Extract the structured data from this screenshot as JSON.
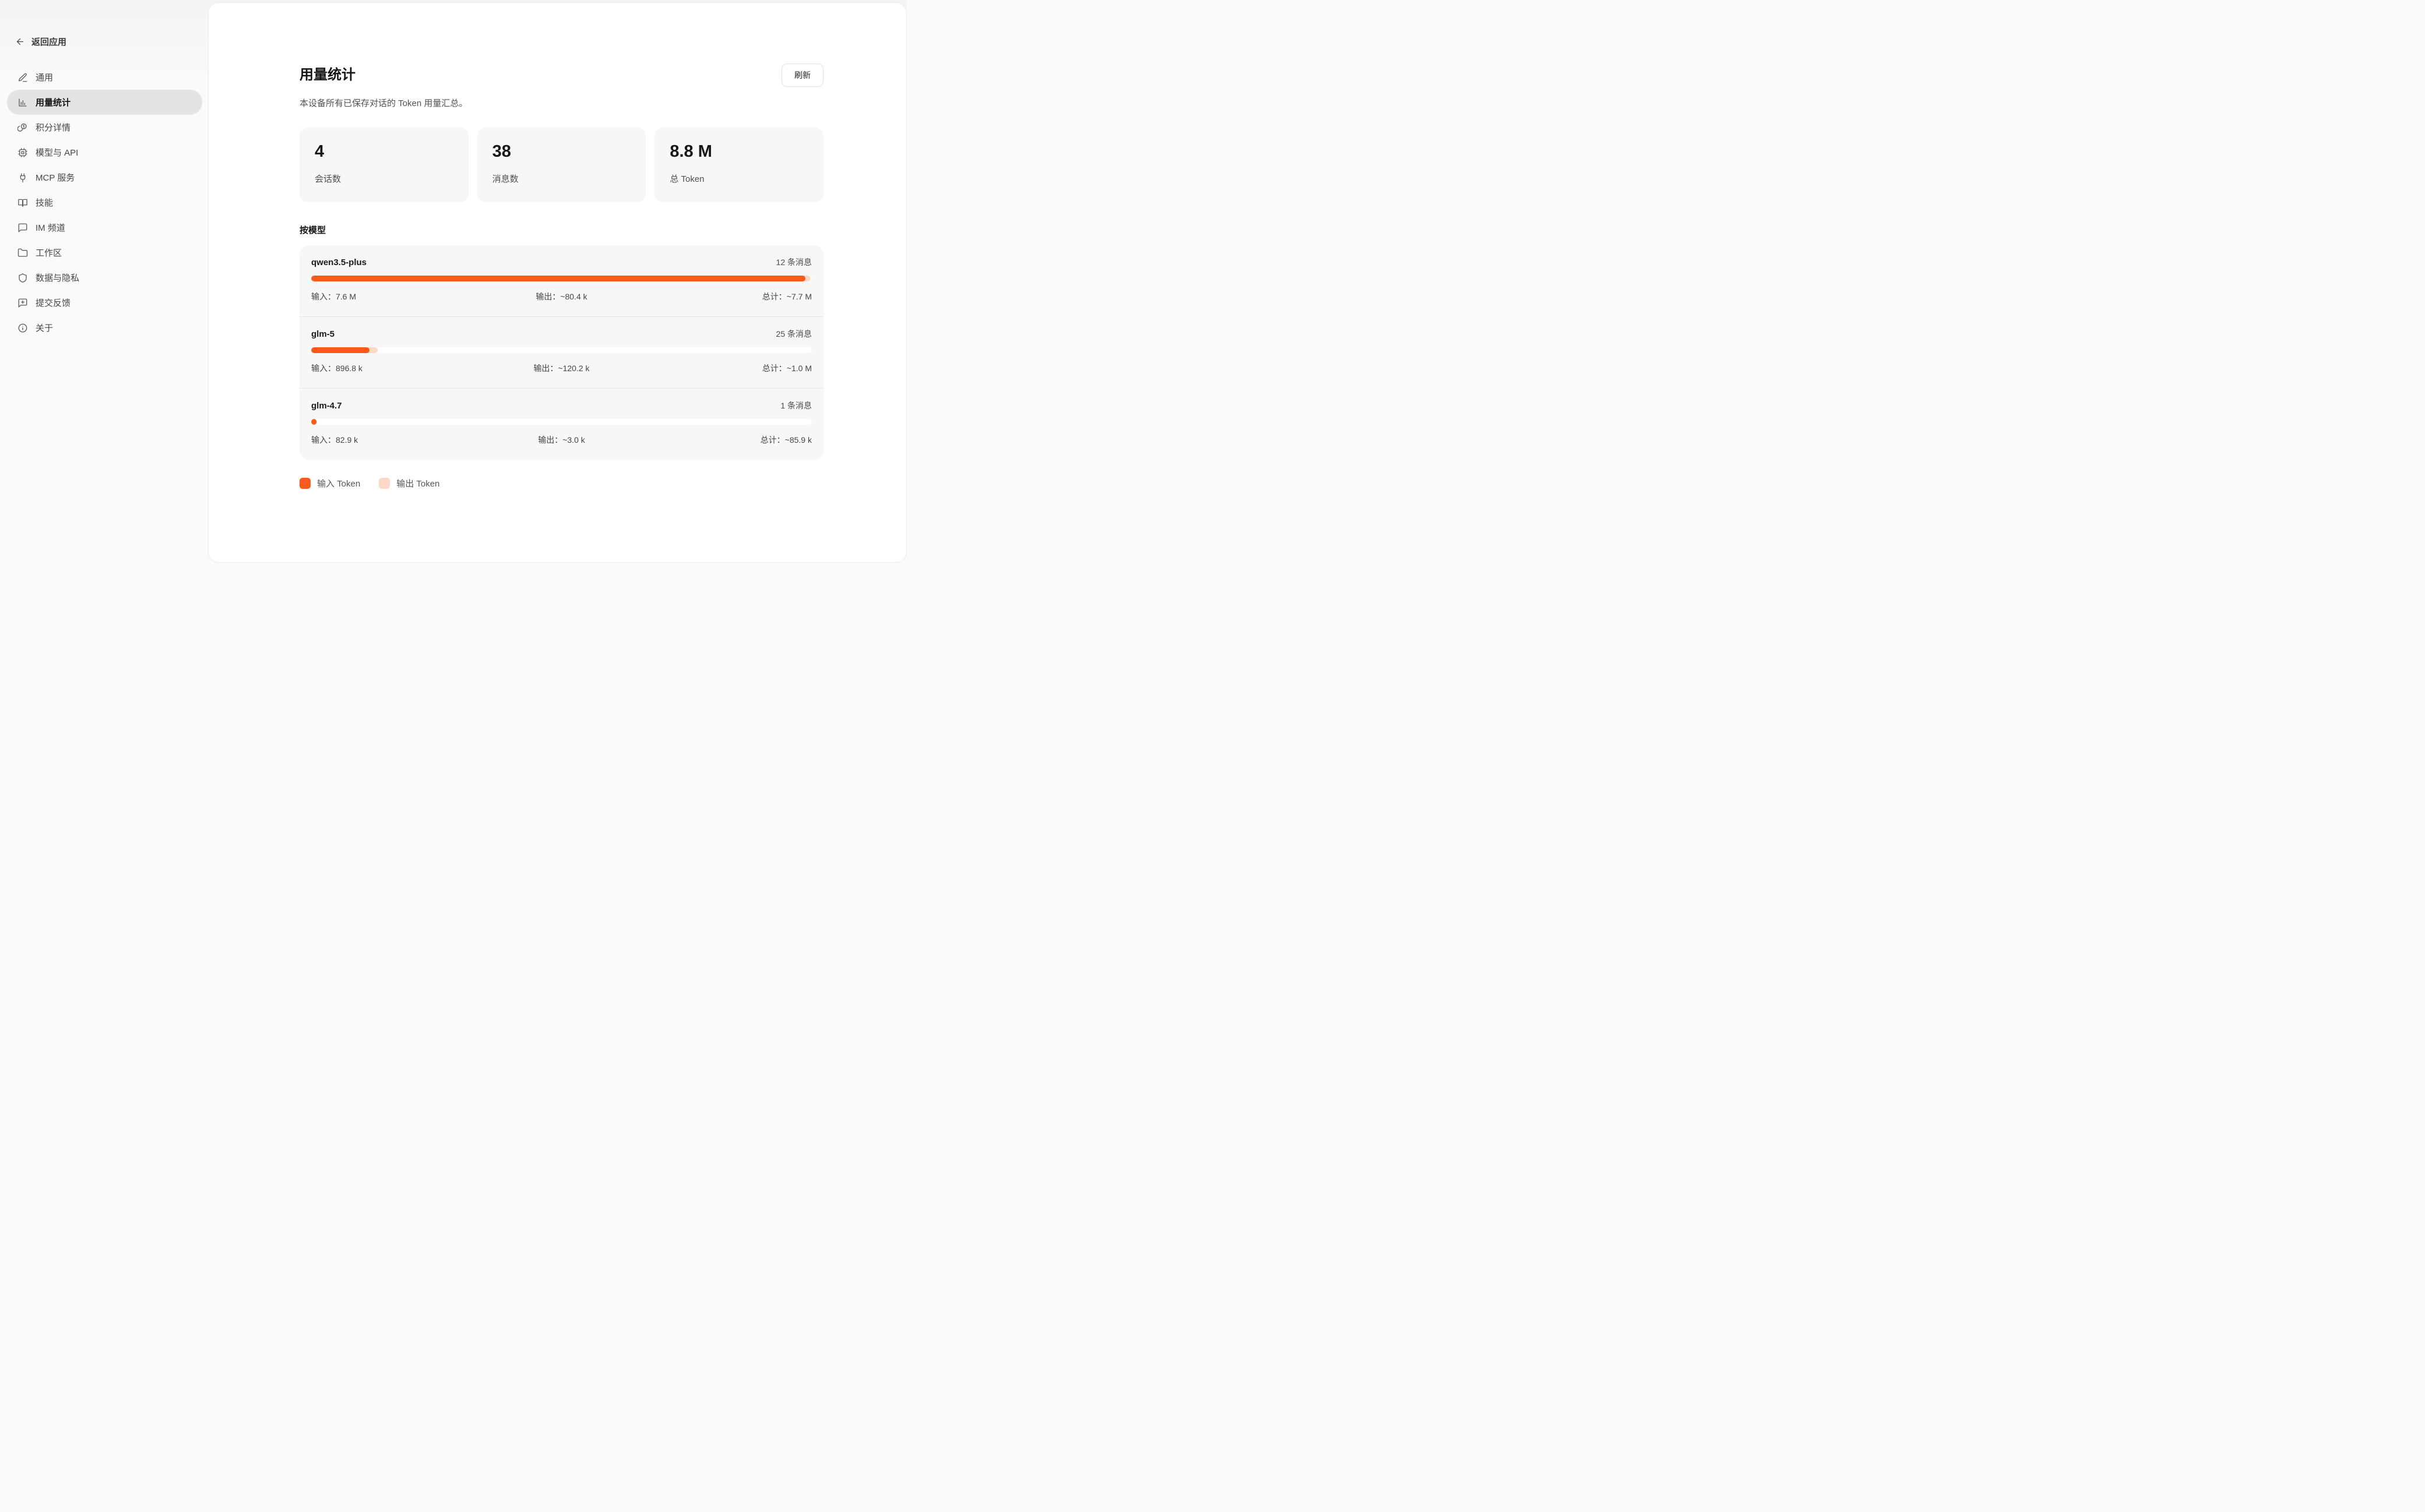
{
  "colors": {
    "input": "#FB5A1E",
    "output": "#FFD8C8"
  },
  "sidebar": {
    "back_label": "返回应用",
    "items": [
      {
        "label": "通用",
        "icon": "pencil-icon",
        "active": false
      },
      {
        "label": "用量统计",
        "icon": "bar-chart-icon",
        "active": true
      },
      {
        "label": "积分详情",
        "icon": "coins-icon",
        "active": false
      },
      {
        "label": "模型与 API",
        "icon": "chip-icon",
        "active": false
      },
      {
        "label": "MCP 服务",
        "icon": "plug-icon",
        "active": false
      },
      {
        "label": "技能",
        "icon": "book-icon",
        "active": false
      },
      {
        "label": "IM 频道",
        "icon": "chat-icon",
        "active": false
      },
      {
        "label": "工作区",
        "icon": "folder-icon",
        "active": false
      },
      {
        "label": "数据与隐私",
        "icon": "shield-icon",
        "active": false
      },
      {
        "label": "提交反馈",
        "icon": "feedback-icon",
        "active": false
      },
      {
        "label": "关于",
        "icon": "info-icon",
        "active": false
      }
    ]
  },
  "header": {
    "title": "用量统计",
    "refresh_label": "刷新",
    "subtitle": "本设备所有已保存对话的 Token 用量汇总。"
  },
  "stats": [
    {
      "value": "4",
      "label": "会话数"
    },
    {
      "value": "38",
      "label": "消息数"
    },
    {
      "value": "8.8 M",
      "label": "总 Token"
    }
  ],
  "by_model": {
    "heading": "按模型",
    "max_tokens": 7700000,
    "models": [
      {
        "name": "qwen3.5-plus",
        "messages": "12 条消息",
        "input_label": "输入：7.6 M",
        "output_label": "输出：~80.4 k",
        "total_label": "总计：~7.7 M",
        "input_tokens": 7600000,
        "output_tokens": 80400
      },
      {
        "name": "glm-5",
        "messages": "25 条消息",
        "input_label": "输入：896.8 k",
        "output_label": "输出：~120.2 k",
        "total_label": "总计：~1.0 M",
        "input_tokens": 896800,
        "output_tokens": 120200
      },
      {
        "name": "glm-4.7",
        "messages": "1 条消息",
        "input_label": "输入：82.9 k",
        "output_label": "输出：~3.0 k",
        "total_label": "总计：~85.9 k",
        "input_tokens": 82900,
        "output_tokens": 3000
      }
    ]
  },
  "legend": [
    {
      "label": "输入 Token",
      "color_key": "input"
    },
    {
      "label": "输出 Token",
      "color_key": "output"
    }
  ]
}
